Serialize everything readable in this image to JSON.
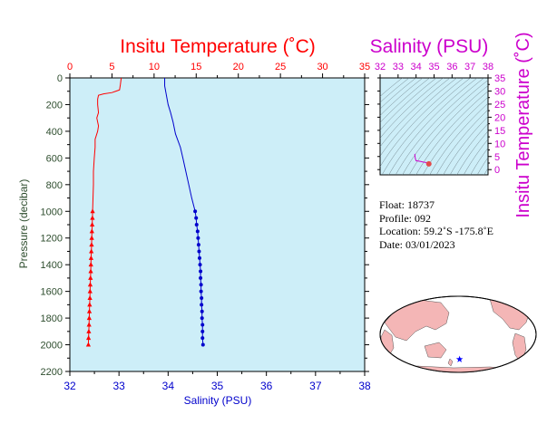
{
  "colors": {
    "temperature": "#ff0000",
    "salinity": "#0000cc",
    "magenta": "#cc00cc",
    "axis_green": "#2e4d2e",
    "panel_bg": "#cdeef8",
    "land": "#f4b6b6",
    "float_star": "#0000ff"
  },
  "chart_data": [
    {
      "type": "line",
      "panel": "profile",
      "title_top": "Insitu Temperature (˚C)",
      "xlabel_bottom": "Salinity (PSU)",
      "ylabel": "Pressure (decibar)",
      "y_inverted": true,
      "ylim": [
        0,
        2200
      ],
      "yticks": [
        "0",
        "200",
        "400",
        "600",
        "800",
        "1000",
        "1200",
        "1400",
        "1600",
        "1800",
        "2000",
        "2200"
      ],
      "temp_xlim": [
        0,
        35
      ],
      "temp_ticks": [
        "0",
        "5",
        "10",
        "15",
        "20",
        "25",
        "30",
        "35"
      ],
      "sal_xlim": [
        32,
        38
      ],
      "sal_ticks": [
        "32",
        "33",
        "34",
        "35",
        "36",
        "37",
        "38"
      ],
      "grid": false,
      "series": [
        {
          "name": "Insitu Temperature (˚C)",
          "axis": "top",
          "marker": "triangle",
          "profile": [
            [
              6.1,
              0
            ],
            [
              6.0,
              50
            ],
            [
              5.9,
              90
            ],
            [
              5.0,
              110
            ],
            [
              4.0,
              120
            ],
            [
              3.4,
              130
            ],
            [
              3.3,
              160
            ],
            [
              3.3,
              200
            ],
            [
              3.4,
              260
            ],
            [
              3.2,
              300
            ],
            [
              3.4,
              360
            ],
            [
              3.3,
              400
            ],
            [
              3.0,
              460
            ],
            [
              3.0,
              520
            ],
            [
              2.9,
              600
            ],
            [
              2.8,
              700
            ],
            [
              2.8,
              800
            ],
            [
              2.75,
              900
            ],
            [
              2.7,
              1000
            ]
          ],
          "points": [
            [
              2.7,
              1000
            ],
            [
              2.68,
              1050
            ],
            [
              2.65,
              1100
            ],
            [
              2.62,
              1150
            ],
            [
              2.6,
              1200
            ],
            [
              2.58,
              1250
            ],
            [
              2.55,
              1300
            ],
            [
              2.52,
              1350
            ],
            [
              2.5,
              1400
            ],
            [
              2.48,
              1450
            ],
            [
              2.45,
              1500
            ],
            [
              2.42,
              1550
            ],
            [
              2.4,
              1600
            ],
            [
              2.38,
              1650
            ],
            [
              2.35,
              1700
            ],
            [
              2.32,
              1750
            ],
            [
              2.3,
              1800
            ],
            [
              2.28,
              1850
            ],
            [
              2.25,
              1900
            ],
            [
              2.22,
              1950
            ],
            [
              2.2,
              2000
            ]
          ]
        },
        {
          "name": "Salinity (PSU)",
          "axis": "bottom",
          "marker": "circle",
          "profile": [
            [
              33.93,
              0
            ],
            [
              33.93,
              60
            ],
            [
              33.96,
              120
            ],
            [
              34.0,
              200
            ],
            [
              34.05,
              260
            ],
            [
              34.1,
              330
            ],
            [
              34.15,
              420
            ],
            [
              34.25,
              520
            ],
            [
              34.3,
              600
            ],
            [
              34.36,
              700
            ],
            [
              34.42,
              800
            ],
            [
              34.48,
              900
            ],
            [
              34.55,
              1000
            ]
          ],
          "points": [
            [
              34.55,
              1000
            ],
            [
              34.57,
              1050
            ],
            [
              34.58,
              1100
            ],
            [
              34.6,
              1150
            ],
            [
              34.61,
              1200
            ],
            [
              34.62,
              1250
            ],
            [
              34.63,
              1300
            ],
            [
              34.64,
              1350
            ],
            [
              34.65,
              1400
            ],
            [
              34.66,
              1450
            ],
            [
              34.66,
              1500
            ],
            [
              34.67,
              1550
            ],
            [
              34.67,
              1600
            ],
            [
              34.68,
              1650
            ],
            [
              34.68,
              1700
            ],
            [
              34.69,
              1750
            ],
            [
              34.69,
              1800
            ],
            [
              34.7,
              1850
            ],
            [
              34.7,
              1900
            ],
            [
              34.7,
              1950
            ],
            [
              34.71,
              2000
            ]
          ]
        }
      ]
    },
    {
      "type": "scatter",
      "panel": "ts_diagram",
      "title_top": "Salinity (PSU)",
      "ylabel": "Insitu Temperature (˚C)",
      "xlim": [
        32,
        38
      ],
      "ylim": [
        -2,
        35
      ],
      "x_ticks": [
        "32",
        "33",
        "34",
        "35",
        "36",
        "37",
        "38"
      ],
      "y_ticks": [
        "0",
        "5",
        "10",
        "15",
        "20",
        "25",
        "30",
        "35"
      ],
      "ts_curve": [
        [
          33.93,
          6.0
        ],
        [
          33.95,
          4.5
        ],
        [
          34.0,
          3.4
        ],
        [
          34.2,
          3.2
        ],
        [
          34.4,
          2.9
        ],
        [
          34.55,
          2.7
        ],
        [
          34.71,
          2.2
        ]
      ],
      "surface_point": [
        34.71,
        2.2
      ]
    }
  ],
  "float_info": {
    "float": "Float:  18737",
    "profile": "Profile:  092",
    "location": "Location:  59.2˚S  -175.8˚E",
    "date": "Date:  03/01/2023"
  },
  "map": {
    "float_position": {
      "lat": -59.2,
      "lon": -175.8
    }
  }
}
